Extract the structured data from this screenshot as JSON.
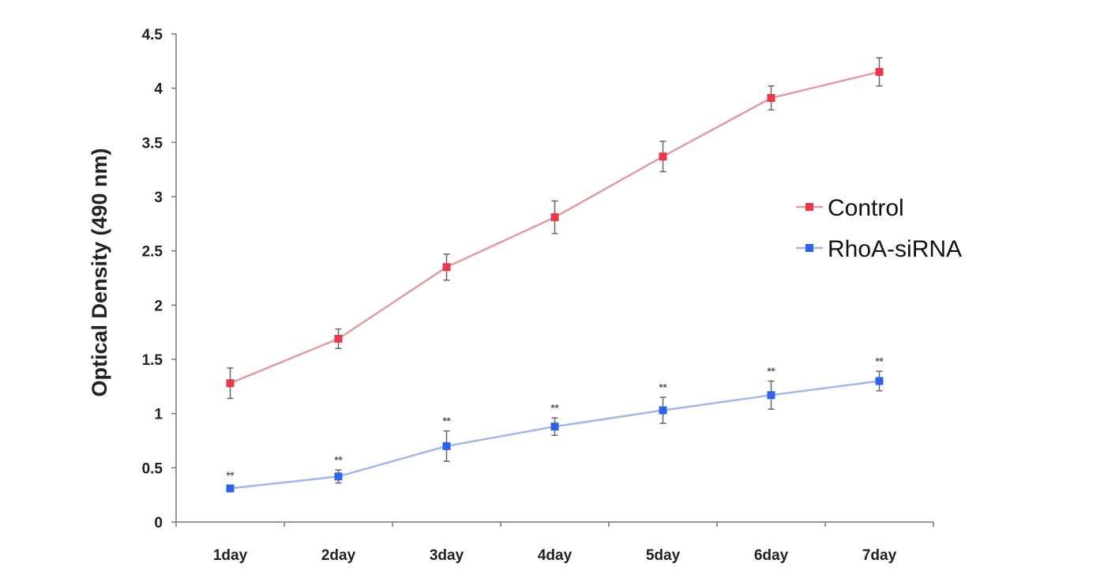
{
  "chart_data": {
    "type": "line",
    "title": "",
    "xlabel": "",
    "ylabel": "Optical Density (490 nm)",
    "categories": [
      "1day",
      "2day",
      "3day",
      "4day",
      "5day",
      "6day",
      "7day"
    ],
    "ylim": [
      0,
      4.5
    ],
    "yticks": [
      "0",
      "0.5",
      "1",
      "1.5",
      "2",
      "2.5",
      "3",
      "3.5",
      "4",
      "4.5"
    ],
    "grid": false,
    "legend_position": "right",
    "series": [
      {
        "name": "Control",
        "color": "#e8384a",
        "line_color": "#e59aa3",
        "marker": "square",
        "values": [
          1.28,
          1.69,
          2.35,
          2.81,
          3.37,
          3.91,
          4.15
        ],
        "errors": [
          0.14,
          0.09,
          0.12,
          0.15,
          0.14,
          0.11,
          0.13
        ]
      },
      {
        "name": "RhoA-siRNA",
        "color": "#2d63e8",
        "line_color": "#a3b6ee",
        "marker": "square",
        "values": [
          0.31,
          0.42,
          0.7,
          0.88,
          1.03,
          1.17,
          1.3
        ],
        "errors": [
          0.03,
          0.06,
          0.14,
          0.08,
          0.12,
          0.13,
          0.09
        ]
      }
    ],
    "annotations": [
      {
        "category": "1day",
        "series": "RhoA-siRNA",
        "text": "**"
      },
      {
        "category": "2day",
        "series": "RhoA-siRNA",
        "text": "**"
      },
      {
        "category": "3day",
        "series": "RhoA-siRNA",
        "text": "**"
      },
      {
        "category": "4day",
        "series": "RhoA-siRNA",
        "text": "**"
      },
      {
        "category": "5day",
        "series": "RhoA-siRNA",
        "text": "**"
      },
      {
        "category": "6day",
        "series": "RhoA-siRNA",
        "text": "**"
      },
      {
        "category": "7day",
        "series": "RhoA-siRNA",
        "text": "**"
      }
    ]
  }
}
